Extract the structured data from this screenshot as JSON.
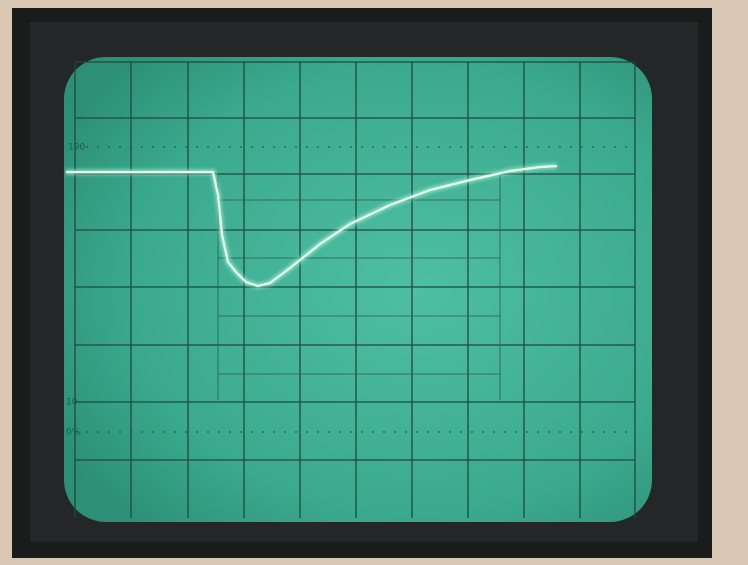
{
  "graticule": {
    "labels": [
      "100",
      "10",
      "0%"
    ]
  }
}
